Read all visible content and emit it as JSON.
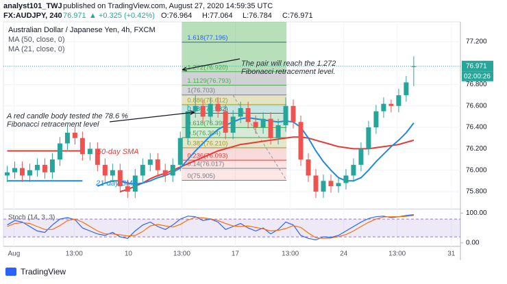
{
  "header": {
    "author": "analyst101_TWJ",
    "published": "published on TradingView.com, August 27, 2020 14:59:35 UTC",
    "symbol": "FX:AUDJPY, 240",
    "last": "76.971",
    "change": "▲ +0.325 (+0.42%)",
    "open": "O:76.964",
    "high": "H:77.064",
    "low": "L:76.784",
    "close": "C:76.971"
  },
  "footer": {
    "brand": "TradingView"
  },
  "chart_data": {
    "type": "candlestick",
    "title": "Australian Dollar / Japanese Yen, 4h, FXCM",
    "categories": [
      null,
      null,
      null,
      null,
      null,
      null,
      null,
      null,
      null,
      null,
      null,
      null,
      null,
      null,
      null,
      null,
      null,
      null,
      null,
      null,
      null,
      null,
      null,
      null,
      null,
      null,
      null,
      null,
      null,
      null,
      null,
      null,
      null,
      null,
      null,
      null,
      null,
      null,
      null,
      null,
      null,
      null,
      null,
      null,
      null,
      null,
      null,
      null,
      null,
      null,
      null,
      null,
      null,
      null,
      null
    ],
    "open": [
      75.95,
      75.98,
      76.02,
      75.95,
      76.0,
      76.05,
      75.98,
      76.1,
      76.25,
      76.35,
      76.3,
      76.15,
      76.2,
      76.05,
      75.95,
      76.0,
      75.85,
      75.8,
      75.95,
      76.05,
      76.1,
      76.0,
      75.95,
      76.05,
      76.3,
      76.55,
      76.6,
      76.5,
      76.62,
      76.55,
      76.35,
      76.5,
      76.58,
      76.45,
      76.4,
      76.48,
      76.3,
      76.42,
      76.6,
      76.45,
      76.1,
      75.95,
      75.8,
      75.9,
      75.85,
      75.88,
      75.95,
      76.05,
      76.2,
      76.4,
      76.55,
      76.62,
      76.6,
      76.7,
      76.964
    ],
    "high": [
      76.04,
      76.08,
      76.08,
      76.06,
      76.11,
      76.11,
      76.16,
      76.31,
      76.41,
      76.41,
      76.36,
      76.26,
      76.26,
      76.11,
      76.06,
      76.06,
      75.91,
      76.01,
      76.11,
      76.16,
      76.16,
      76.06,
      76.11,
      76.36,
      76.61,
      76.7,
      76.66,
      76.68,
      76.68,
      76.61,
      76.56,
      76.64,
      76.64,
      76.51,
      76.54,
      76.54,
      76.48,
      76.68,
      76.66,
      76.51,
      76.16,
      76.01,
      75.96,
      75.96,
      75.94,
      76.01,
      76.11,
      76.26,
      76.46,
      76.61,
      76.68,
      76.66,
      76.76,
      76.88,
      77.064
    ],
    "low": [
      75.89,
      75.92,
      75.89,
      75.89,
      75.94,
      75.92,
      75.92,
      76.04,
      76.19,
      76.24,
      76.09,
      76.09,
      75.99,
      75.89,
      75.89,
      75.79,
      75.74,
      75.74,
      75.89,
      75.99,
      75.94,
      75.89,
      75.89,
      75.99,
      76.24,
      76.49,
      76.44,
      76.44,
      76.49,
      76.29,
      76.29,
      76.44,
      76.39,
      76.34,
      76.34,
      76.24,
      76.24,
      76.36,
      76.39,
      76.04,
      75.89,
      75.74,
      75.74,
      75.79,
      75.79,
      75.82,
      75.89,
      75.99,
      76.14,
      76.34,
      76.49,
      76.54,
      76.54,
      76.64,
      76.784
    ],
    "close": [
      75.98,
      76.02,
      75.95,
      76.0,
      76.05,
      75.98,
      76.1,
      76.25,
      76.35,
      76.3,
      76.15,
      76.2,
      76.05,
      75.95,
      76.0,
      75.85,
      75.8,
      75.95,
      76.05,
      76.1,
      76.0,
      75.95,
      76.05,
      76.3,
      76.55,
      76.6,
      76.5,
      76.62,
      76.55,
      76.35,
      76.5,
      76.58,
      76.45,
      76.4,
      76.48,
      76.3,
      76.42,
      76.6,
      76.45,
      76.1,
      75.95,
      75.8,
      75.9,
      75.85,
      75.88,
      75.95,
      76.05,
      76.2,
      76.4,
      76.55,
      76.62,
      76.6,
      76.7,
      76.82,
      76.971
    ],
    "up_color": "#26a69a",
    "down_color": "#ef5350",
    "series": [
      {
        "name": "MA (50, close, 0)",
        "color": "#e53935",
        "values": [
          76.18,
          76.18,
          76.18,
          76.18,
          76.18,
          76.18,
          76.18,
          76.18,
          76.18,
          76.18,
          76.18,
          null,
          null,
          null,
          null,
          75.8,
          75.82,
          75.85,
          75.88,
          75.92,
          75.95,
          75.97,
          76.0,
          76.03,
          76.06,
          76.09,
          76.12,
          76.15,
          76.18,
          76.2,
          76.22,
          76.24,
          76.25,
          76.26,
          76.27,
          76.28,
          76.29,
          76.3,
          76.31,
          76.31,
          76.3,
          76.28,
          76.26,
          76.24,
          76.22,
          76.21,
          76.2,
          76.2,
          76.2,
          76.21,
          76.22,
          76.23,
          76.24,
          76.26,
          76.28
        ]
      },
      {
        "name": "MA (21, close, 0)",
        "color": "#1e88e5",
        "values": [
          75.9,
          75.9,
          75.9,
          75.9,
          75.9,
          75.9,
          75.9,
          75.9,
          75.9,
          75.9,
          75.9,
          null,
          75.85,
          75.88,
          75.9,
          75.9,
          75.88,
          75.87,
          75.88,
          75.9,
          75.93,
          75.95,
          75.98,
          76.02,
          76.1,
          76.18,
          76.25,
          76.32,
          76.38,
          76.42,
          76.45,
          76.48,
          76.49,
          76.48,
          76.47,
          76.46,
          76.45,
          76.46,
          76.45,
          76.4,
          76.3,
          76.18,
          76.08,
          76.0,
          75.93,
          75.9,
          75.9,
          75.93,
          76.0,
          76.08,
          76.15,
          76.22,
          76.28,
          76.35,
          76.44
        ]
      }
    ],
    "ylim": [
      75.64,
      77.385
    ],
    "yticks": [
      {
        "value": 77.2,
        "label": "77.200"
      },
      {
        "value": 76.8,
        "label": "76.800"
      },
      {
        "value": 76.6,
        "label": "76.600"
      },
      {
        "value": 76.4,
        "label": "76.400"
      },
      {
        "value": 76.2,
        "label": "76.200"
      },
      {
        "value": 76.0,
        "label": "76.000"
      },
      {
        "value": 75.8,
        "label": "75.800"
      }
    ],
    "xlim": [
      -0.5,
      60.2
    ],
    "xticks": [
      {
        "value": 0.9,
        "label": "Aug"
      },
      {
        "value": 8.9,
        "label": "13:00"
      },
      {
        "value": 16.1,
        "label": "10"
      },
      {
        "value": 23.2,
        "label": "13:00"
      },
      {
        "value": 30.3,
        "label": "17"
      },
      {
        "value": 37.6,
        "label": "13:00"
      },
      {
        "value": 44.7,
        "label": "24"
      },
      {
        "value": 51.8,
        "label": "13:00"
      },
      {
        "value": 59,
        "label": "31"
      }
    ],
    "last_price": {
      "value": 76.971,
      "label": "76.971"
    },
    "countdown": "02:00:26",
    "fibonacci": {
      "levels": [
        {
          "value": 77.196,
          "label": "1.618(77.196)",
          "color": "#2962ff"
        },
        {
          "value": 76.92,
          "label": "1.272(76.920)",
          "color": "#4caf50"
        },
        {
          "value": 76.793,
          "label": "1.1129(76.793)",
          "color": "#4caf50"
        },
        {
          "value": 76.703,
          "label": "1(76.703)",
          "color": "#787b86"
        },
        {
          "value": 76.612,
          "label": "0.886(76.612)",
          "color": "#9e9d24"
        },
        {
          "value": 76.532,
          "label": "0.786(76.532)",
          "color": "#00897b"
        },
        {
          "value": 76.398,
          "label": "0.618(76.398)",
          "color": "#43a047"
        },
        {
          "value": 76.304,
          "label": "0.5(76.304)",
          "color": "#43a047"
        },
        {
          "value": 76.21,
          "label": "0.382(76.210)",
          "color": "#9e9d24"
        },
        {
          "value": 76.093,
          "label": "0.236(76.093)",
          "color": "#e53935"
        },
        {
          "value": 76.017,
          "label": "0.14(76.017)",
          "color": "#787b86"
        },
        {
          "value": 75.905,
          "label": "0(75.905)",
          "color": "#787b86"
        }
      ]
    },
    "annotations": [
      {
        "lines": [
          "The pair will reach the 1.272",
          "Fibonacci retracement level."
        ]
      },
      {
        "lines": [
          "A red candle body tested the  78.6 %",
          "Fibonacci retracement level"
        ]
      },
      {
        "lines": [
          "50-day SMA"
        ],
        "color": "#e53935"
      },
      {
        "lines": [
          "21-day SMA"
        ],
        "color": "#1e88e5"
      }
    ],
    "stoch": {
      "name": "Stoch (14, 3, 3)",
      "ylim": [
        -12,
        108
      ],
      "yticks": [
        {
          "value": 100,
          "label": "100.00"
        },
        {
          "value": 0,
          "label": "0.00"
        }
      ],
      "bands": [
        80,
        20
      ],
      "series": [
        {
          "color": "#2962ff",
          "values": [
            60,
            75,
            70,
            55,
            40,
            35,
            60,
            80,
            85,
            78,
            50,
            40,
            30,
            25,
            35,
            20,
            15,
            40,
            60,
            70,
            55,
            45,
            60,
            80,
            90,
            88,
            75,
            80,
            70,
            45,
            55,
            65,
            50,
            40,
            50,
            30,
            45,
            70,
            60,
            25,
            15,
            10,
            20,
            18,
            25,
            40,
            55,
            70,
            82,
            88,
            90,
            85,
            88,
            92,
            95
          ]
        },
        {
          "color": "#ff6d00",
          "values": [
            55,
            65,
            68,
            65,
            55,
            45,
            45,
            58,
            75,
            80,
            70,
            55,
            40,
            30,
            30,
            27,
            23,
            25,
            38,
            57,
            62,
            57,
            53,
            62,
            77,
            86,
            84,
            81,
            75,
            65,
            57,
            55,
            57,
            52,
            47,
            40,
            42,
            48,
            58,
            52,
            33,
            17,
            15,
            16,
            21,
            28,
            40,
            55,
            69,
            80,
            87,
            88,
            88,
            89,
            92
          ]
        }
      ]
    }
  }
}
